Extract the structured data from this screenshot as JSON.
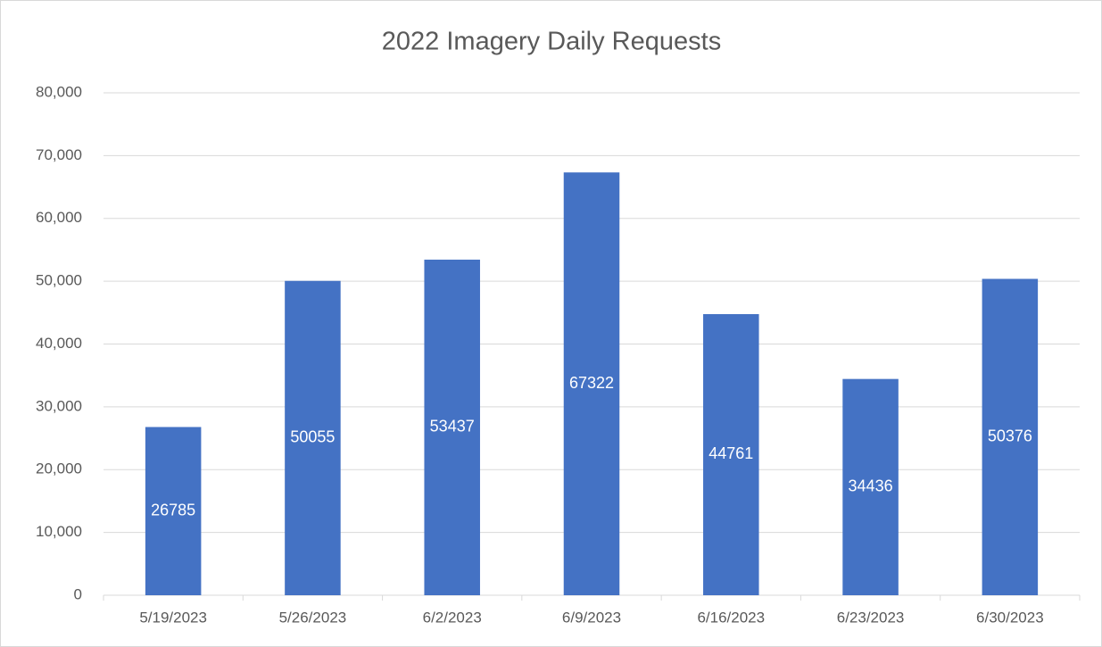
{
  "chart_data": {
    "type": "bar",
    "title": "2022 Imagery Daily Requests",
    "categories": [
      "5/19/2023",
      "5/26/2023",
      "6/2/2023",
      "6/9/2023",
      "6/16/2023",
      "6/23/2023",
      "6/30/2023"
    ],
    "values": [
      26785,
      50055,
      53437,
      67322,
      44761,
      34436,
      50376
    ],
    "color": "#4472c4",
    "ylim": [
      0,
      80000
    ],
    "yticks": [
      0,
      {
        "value": 10000,
        "label": "10,000"
      },
      {
        "value": 20000,
        "label": "20,000"
      },
      {
        "value": 30000,
        "label": "30,000"
      },
      {
        "value": 40000,
        "label": "40,000"
      },
      {
        "value": 50000,
        "label": "50,000"
      },
      {
        "value": 60000,
        "label": "60,000"
      },
      {
        "value": 70000,
        "label": "70,000"
      },
      {
        "value": 80000,
        "label": "80,000"
      }
    ],
    "grid": true
  }
}
